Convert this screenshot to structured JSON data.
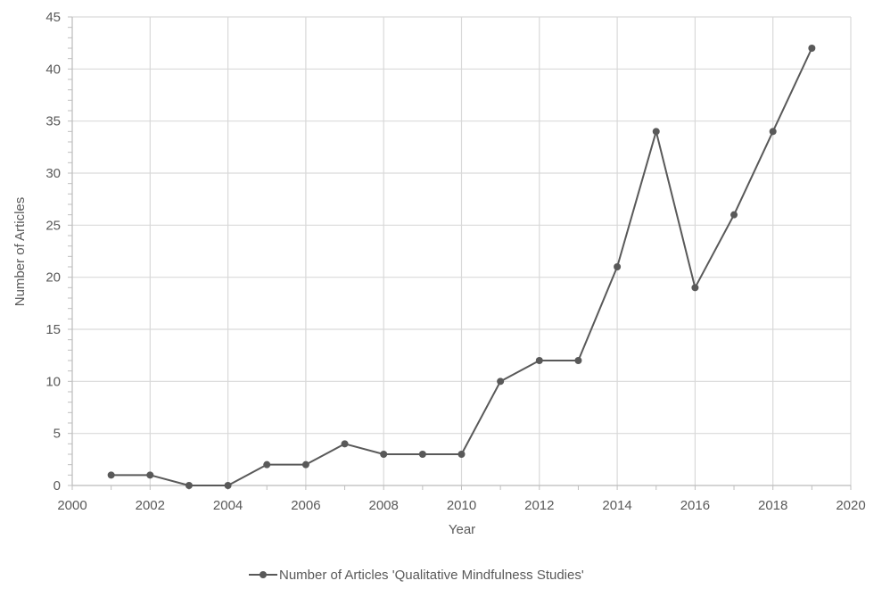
{
  "chart_data": {
    "type": "line",
    "title": "",
    "xlabel": "Year",
    "ylabel": "Number of Articles",
    "xlim": [
      2000,
      2020
    ],
    "ylim": [
      0,
      45
    ],
    "x_ticks": [
      2000,
      2002,
      2004,
      2006,
      2008,
      2010,
      2012,
      2014,
      2016,
      2018,
      2020
    ],
    "y_ticks": [
      0,
      5,
      10,
      15,
      20,
      25,
      30,
      35,
      40,
      45
    ],
    "grid": true,
    "legend_position": "bottom-center",
    "series": [
      {
        "name": "Number of Articles 'Qualitative Mindfulness Studies'",
        "color": "#595959",
        "x": [
          2001,
          2002,
          2003,
          2004,
          2005,
          2006,
          2007,
          2008,
          2009,
          2010,
          2011,
          2012,
          2013,
          2014,
          2015,
          2016,
          2017,
          2018,
          2019
        ],
        "y": [
          1,
          1,
          0,
          0,
          2,
          2,
          4,
          3,
          3,
          3,
          10,
          12,
          12,
          21,
          34,
          19,
          26,
          34,
          42
        ]
      }
    ]
  }
}
